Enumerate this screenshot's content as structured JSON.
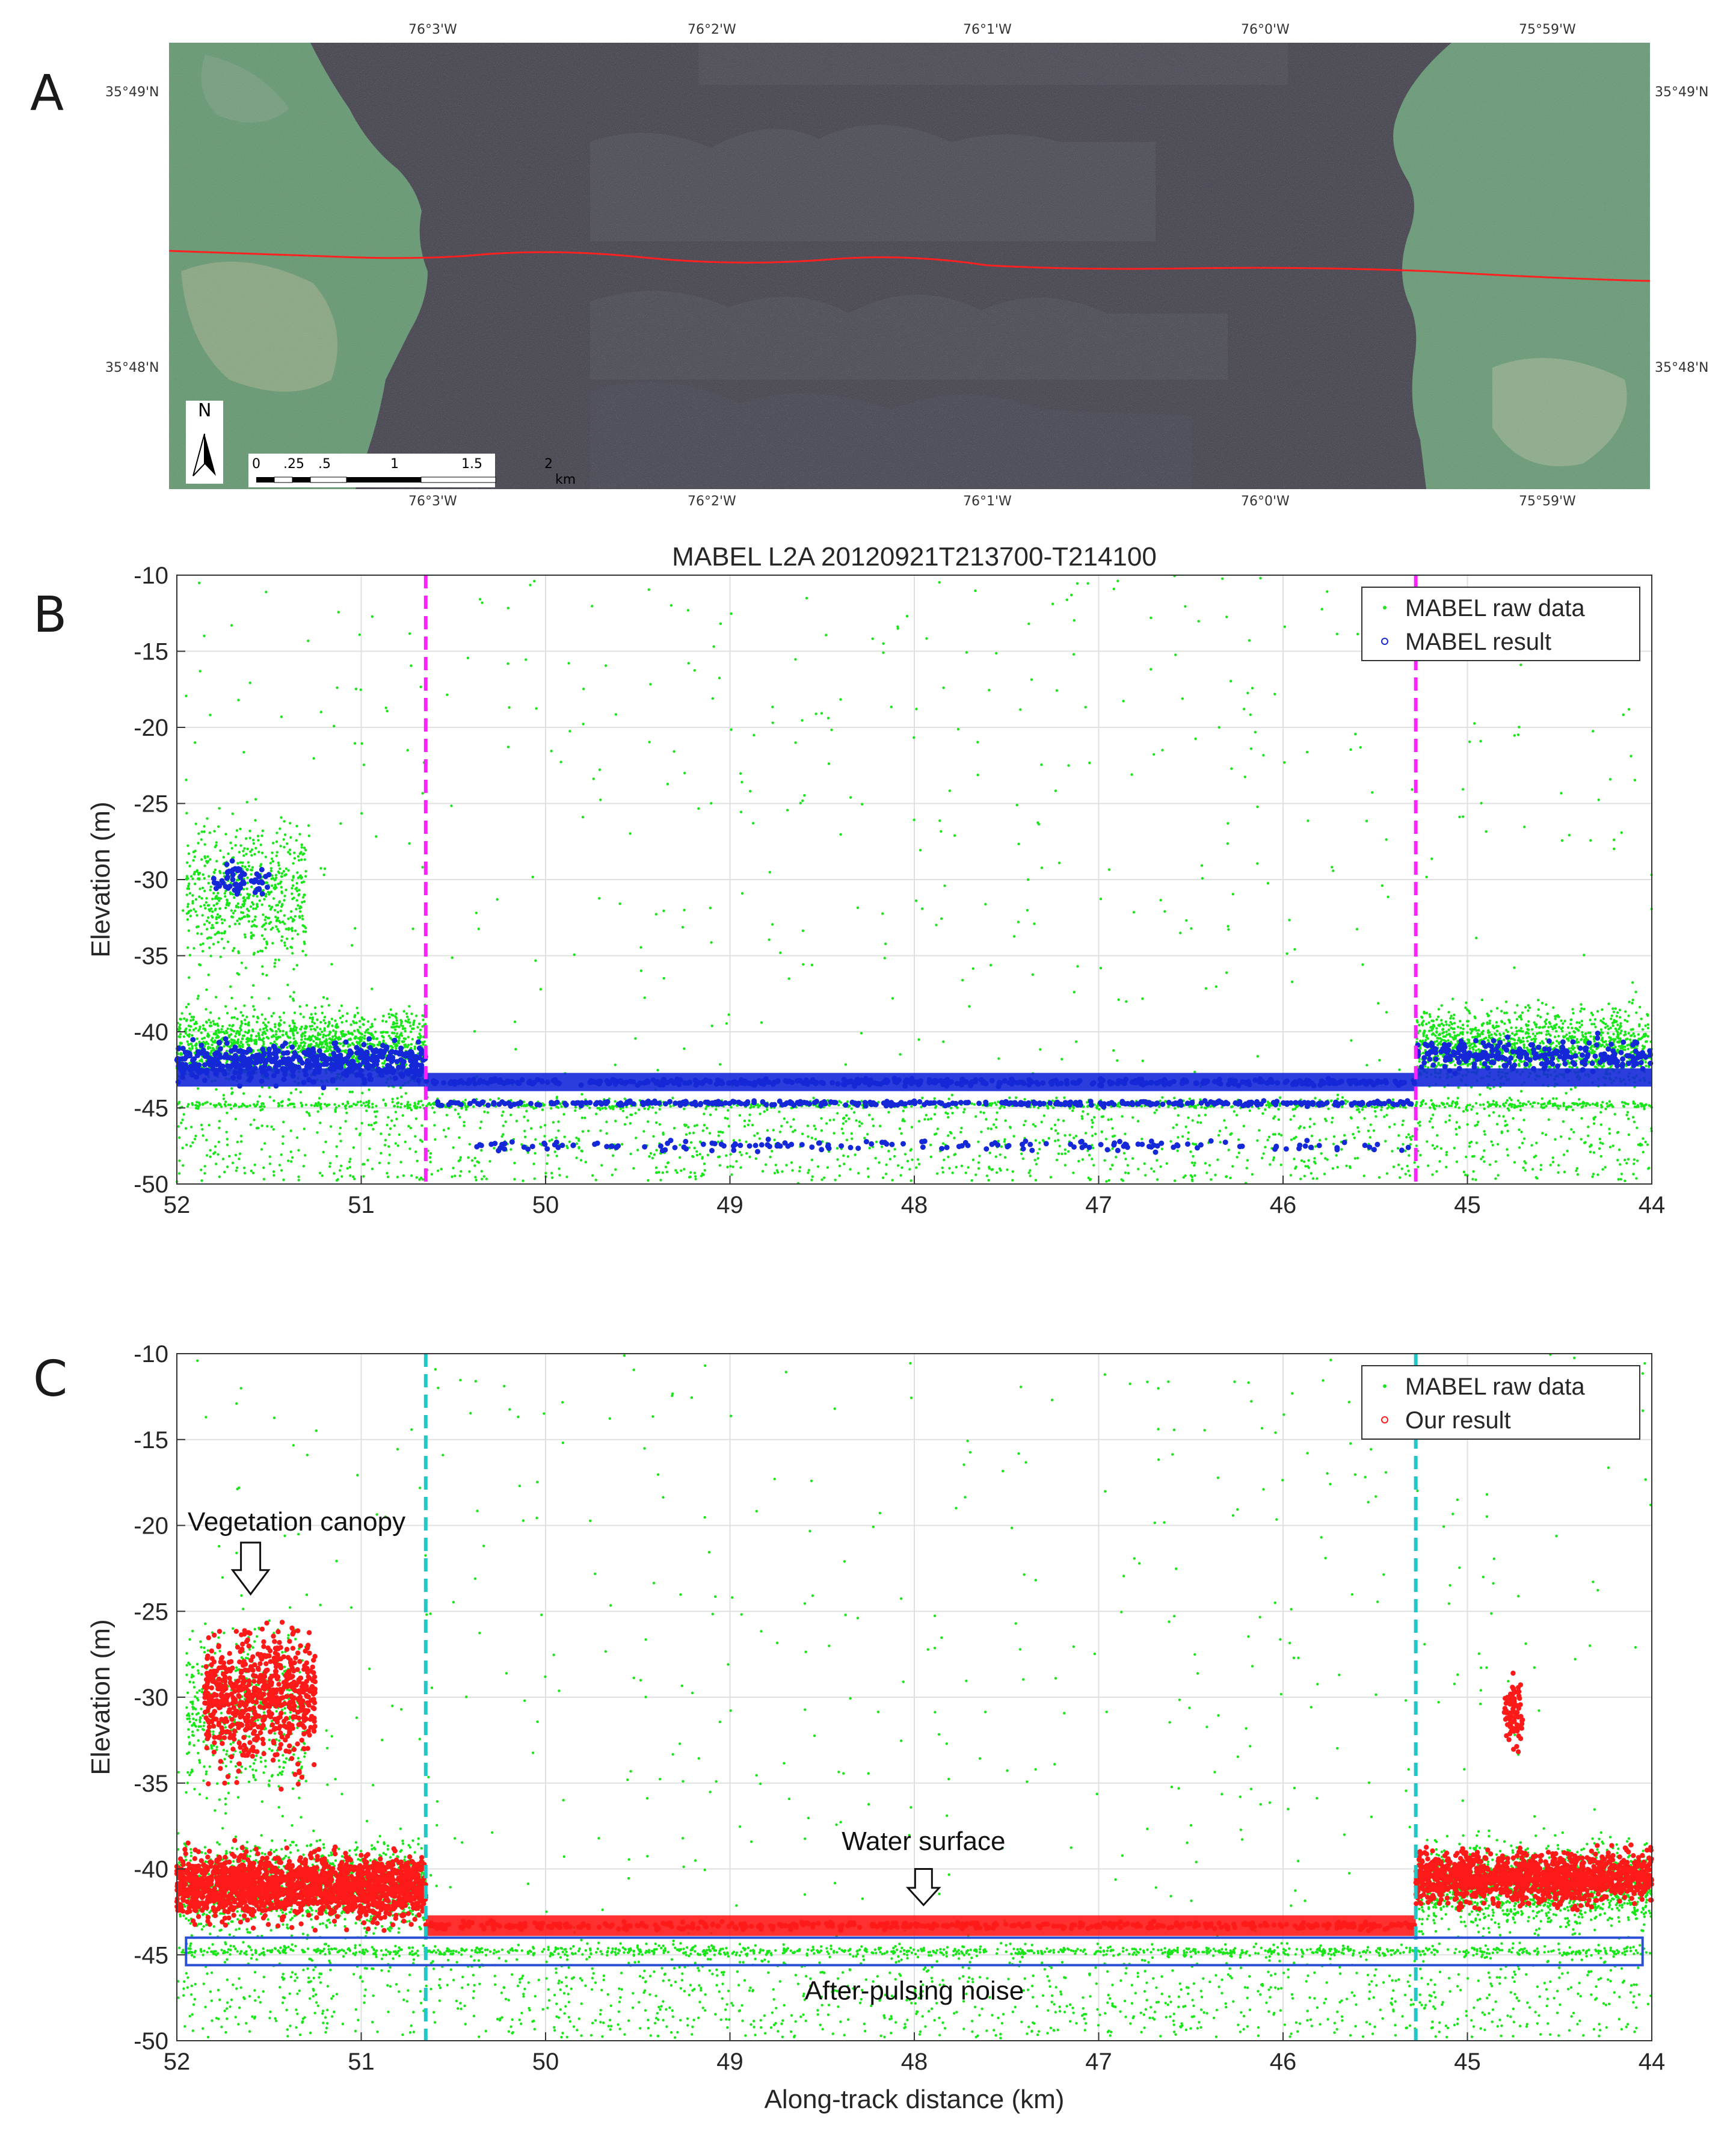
{
  "panel_labels": [
    "A",
    "B",
    "C"
  ],
  "map": {
    "lon_ticks": [
      "76°3'W",
      "76°2'W",
      "76°1'W",
      "76°0'W",
      "75°59'W"
    ],
    "lat_ticks": [
      "35°49'N",
      "35°48'N"
    ],
    "north_label": "N",
    "scale_labels": [
      "0",
      ".25",
      ".5",
      "1",
      "1.5",
      "2"
    ],
    "scale_unit": "km",
    "track_color": "#ff2020",
    "water_color": "#4a4a52",
    "land_color": "#6f9a78"
  },
  "chart_data": [
    {
      "type": "scatter",
      "panel": "B",
      "title": "MABEL L2A 20120921T213700-T214100",
      "xlabel": "",
      "ylabel": "Elevation (m)",
      "xlim": [
        52,
        44
      ],
      "ylim": [
        -50,
        -10
      ],
      "x_ticks": [
        "52",
        "51",
        "50",
        "49",
        "48",
        "47",
        "46",
        "45",
        "44"
      ],
      "y_ticks": [
        "-10",
        "-15",
        "-20",
        "-25",
        "-30",
        "-35",
        "-40",
        "-45",
        "-50"
      ],
      "grid": true,
      "legend": {
        "placement": "top-right",
        "entries": [
          "MABEL raw data",
          "MABEL result"
        ]
      },
      "boundaries_km": [
        50.65,
        45.28
      ],
      "boundary_color": "#ff1fff",
      "series": [
        {
          "name": "MABEL raw data",
          "color": "#19e619",
          "description_regions": [
            {
              "x": [
                52,
                50.65
              ],
              "y_main": [
                -44,
                -38
              ]
            },
            {
              "x": [
                50.65,
                45.28
              ],
              "y_main": [
                -45,
                -43
              ]
            },
            {
              "x": [
                45.28,
                44
              ],
              "y_main": [
                -44,
                -38
              ]
            }
          ]
        },
        {
          "name": "MABEL result",
          "color": "#1428d8",
          "water_surface_m": -43.2,
          "afterpulse_bands_m": [
            -44.7,
            -47.5
          ]
        }
      ]
    },
    {
      "type": "scatter",
      "panel": "C",
      "title": "",
      "xlabel": "Along-track distance (km)",
      "ylabel": "Elevation (m)",
      "xlim": [
        52,
        44
      ],
      "ylim": [
        -50,
        -10
      ],
      "x_ticks": [
        "52",
        "51",
        "50",
        "49",
        "48",
        "47",
        "46",
        "45",
        "44"
      ],
      "y_ticks": [
        "-10",
        "-15",
        "-20",
        "-25",
        "-30",
        "-35",
        "-40",
        "-45",
        "-50"
      ],
      "grid": true,
      "legend": {
        "placement": "top-right",
        "entries": [
          "MABEL raw data",
          "Our result"
        ]
      },
      "boundaries_km": [
        50.65,
        45.28
      ],
      "boundary_color": "#1ec8c8",
      "series": [
        {
          "name": "MABEL raw data",
          "color": "#19e619"
        },
        {
          "name": "Our result",
          "color": "#ff1a1a",
          "water_surface_m": -43.2
        }
      ],
      "annotations": [
        {
          "text": "Vegetation canopy",
          "x": 51.6,
          "y": -23
        },
        {
          "text": "Water surface",
          "x": 47.95,
          "y": -42.5
        },
        {
          "text": "After-pulsing noise",
          "x": 48.0,
          "y": -44.9
        }
      ],
      "noise_box_m": [
        -44,
        -45.6
      ]
    }
  ]
}
